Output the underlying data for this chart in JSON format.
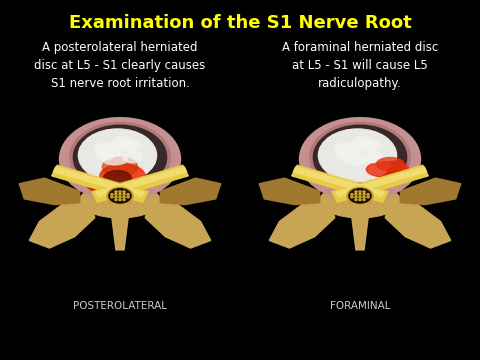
{
  "title": "Examination of the S1 Nerve Root",
  "title_color": "#FFFF00",
  "title_fontsize": 13,
  "background_color": "#000000",
  "left_label": "POSTEROLATERAL",
  "right_label": "FORAMINAL",
  "left_text": "A posterolateral herniated\ndisc at L5 - S1 clearly causes\nS1 nerve root irritation.",
  "right_text": "A foraminal herniated disc\nat L5 - S1 will cause L5\nradiculopathy.",
  "label_color": "#FFFFFF",
  "sublabel_color": "#CCCCCC",
  "label_fontsize": 7.5,
  "text_fontsize": 8.5
}
